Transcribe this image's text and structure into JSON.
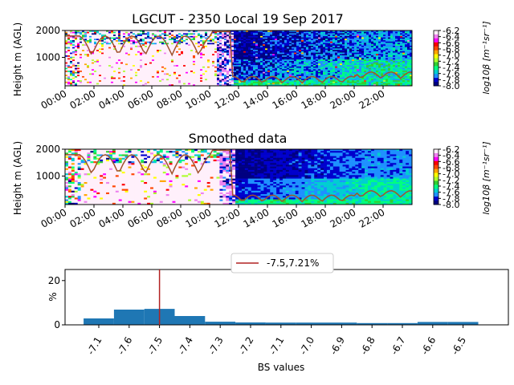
{
  "chart_data": [
    {
      "type": "heatmap",
      "title": "LGCUT - 2350 Local 19 Sep 2017",
      "ylabel": "Height m (AGL)",
      "yticks": [
        "1000",
        "2000"
      ],
      "ylim": [
        0,
        2000
      ],
      "xticks": [
        "00:00",
        "02:00",
        "04:00",
        "06:00",
        "08:00",
        "10:00",
        "12:00",
        "14:00",
        "16:00",
        "18:00",
        "20:00",
        "22:00"
      ],
      "colorbar": {
        "label": "log10β [m⁻¹sr⁻¹]",
        "ticks": [
          "-6.2",
          "-6.4",
          "-6.6",
          "-6.8",
          "-7.0",
          "-7.2",
          "-7.4",
          "-7.6",
          "-7.8",
          "-8.0"
        ],
        "range": [
          -8.0,
          -6.2
        ]
      }
    },
    {
      "type": "heatmap",
      "title": "Smoothed data",
      "ylabel": "Height m (AGL)",
      "yticks": [
        "1000",
        "2000"
      ],
      "ylim": [
        0,
        2000
      ],
      "xticks": [
        "00:00",
        "02:00",
        "04:00",
        "06:00",
        "08:00",
        "10:00",
        "12:00",
        "14:00",
        "16:00",
        "18:00",
        "20:00",
        "22:00"
      ],
      "colorbar": {
        "label": "log10β [m⁻¹sr⁻¹]",
        "ticks": [
          "-6.2",
          "-6.4",
          "-6.6",
          "-6.8",
          "-7.0",
          "-7.2",
          "-7.4",
          "-7.6",
          "-7.8",
          "-8.0"
        ],
        "range": [
          -8.0,
          -6.2
        ]
      }
    },
    {
      "type": "bar",
      "xlabel": "BS values",
      "ylabel": "%",
      "ylim": [
        0,
        25
      ],
      "yticks": [
        "0",
        "20"
      ],
      "categories": [
        "-7.1",
        "-7.6",
        "-7.5",
        "-7.4",
        "-7.3",
        "-7.2",
        "-7.1",
        "-7.0",
        "-6.9",
        "-6.8",
        "-6.7",
        "-6.6",
        "-6.5"
      ],
      "values": [
        2.9,
        6.9,
        7.21,
        4.0,
        1.4,
        1.1,
        1.0,
        1.0,
        1.0,
        0.8,
        0.8,
        1.3,
        1.3
      ],
      "vline": {
        "label": "-7.5,7.21%",
        "x": "-7.5",
        "color": "#b22222"
      },
      "bar_color": "#1f77b4",
      "legend": "top-center"
    }
  ]
}
